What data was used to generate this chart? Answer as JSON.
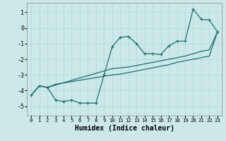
{
  "xlabel": "Humidex (Indice chaleur)",
  "bg_color": "#cce8e8",
  "grid_color": "#b0d8d8",
  "line_color": "#1e6e6e",
  "xlim": [
    -0.5,
    23.5
  ],
  "ylim": [
    -5.6,
    1.6
  ],
  "xticks": [
    0,
    1,
    2,
    3,
    4,
    5,
    6,
    7,
    8,
    9,
    10,
    11,
    12,
    13,
    14,
    15,
    16,
    17,
    18,
    19,
    20,
    21,
    22,
    23
  ],
  "yticks": [
    -5,
    -4,
    -3,
    -2,
    -1,
    0,
    1
  ],
  "line1_x": [
    0,
    1,
    2,
    3,
    4,
    5,
    6,
    7,
    8,
    9,
    10,
    11,
    12,
    13,
    14,
    15,
    16,
    17,
    18,
    19,
    20,
    21,
    22,
    23
  ],
  "line1_y": [
    -4.3,
    -3.7,
    -3.8,
    -4.6,
    -4.7,
    -4.6,
    -4.8,
    -4.8,
    -4.8,
    -3.0,
    -1.2,
    -0.6,
    -0.55,
    -1.0,
    -1.65,
    -1.65,
    -1.7,
    -1.15,
    -0.85,
    -0.85,
    1.2,
    0.55,
    0.5,
    -0.25
  ],
  "line2_x": [
    0,
    1,
    2,
    3,
    10,
    11,
    12,
    13,
    14,
    15,
    16,
    17,
    18,
    19,
    20,
    21,
    22,
    23
  ],
  "line2_y": [
    -4.3,
    -3.7,
    -3.8,
    -3.6,
    -3.0,
    -2.95,
    -2.85,
    -2.75,
    -2.65,
    -2.55,
    -2.45,
    -2.35,
    -2.2,
    -2.1,
    -2.0,
    -1.9,
    -1.8,
    -0.25
  ],
  "line3_x": [
    0,
    1,
    2,
    10,
    11,
    12,
    13,
    14,
    15,
    16,
    17,
    18,
    19,
    20,
    21,
    22,
    23
  ],
  "line3_y": [
    -4.3,
    -3.7,
    -3.8,
    -2.6,
    -2.55,
    -2.5,
    -2.4,
    -2.3,
    -2.2,
    -2.1,
    -2.0,
    -1.9,
    -1.8,
    -1.65,
    -1.5,
    -1.4,
    -0.25
  ]
}
